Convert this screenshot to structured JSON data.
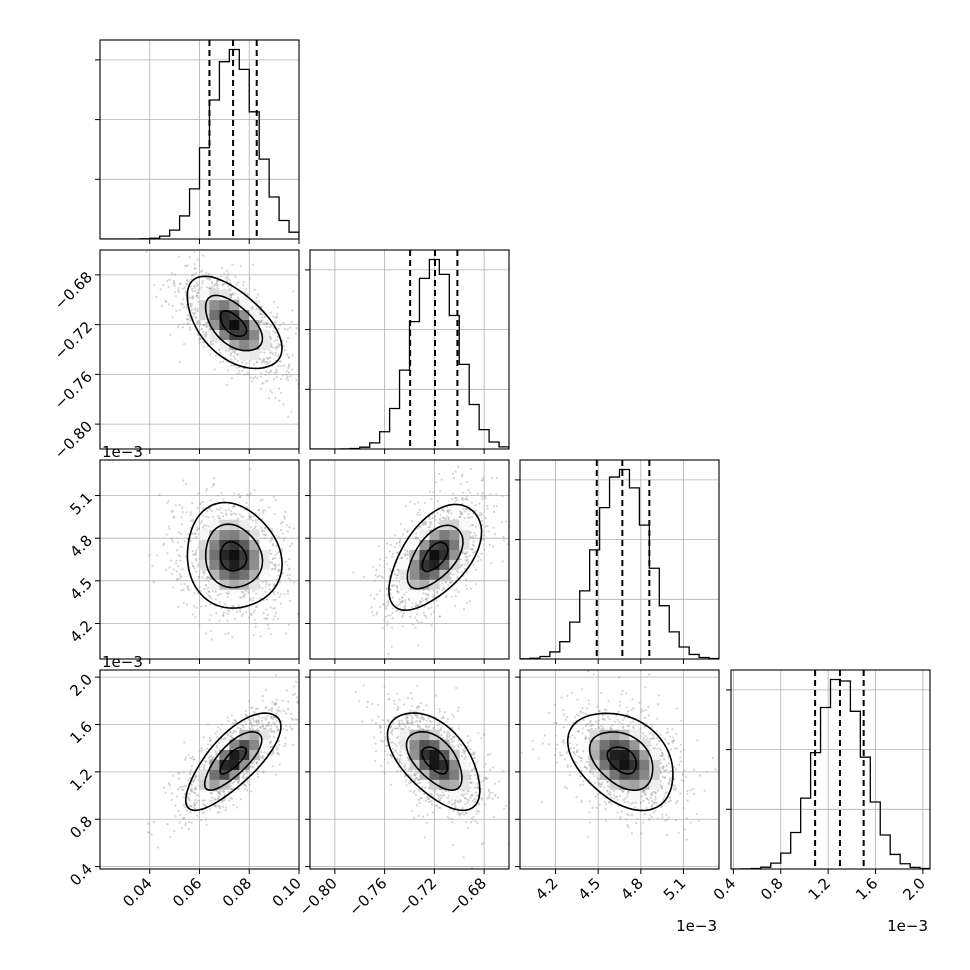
{
  "chart_data": {
    "type": "corner",
    "title": "",
    "parameters": [
      {
        "ticks": [
          0.04,
          0.06,
          0.08,
          0.1
        ],
        "tick_labels": [
          "0.04",
          "0.06",
          "0.08",
          "0.10"
        ],
        "range": [
          0.02,
          0.1
        ],
        "offset_label": "",
        "quantiles": [
          0.064,
          0.0735,
          0.083
        ],
        "mean": 0.0735,
        "sd": 0.0095
      },
      {
        "ticks": [
          -0.8,
          -0.76,
          -0.72,
          -0.68
        ],
        "tick_labels": [
          "−0.80",
          "−0.76",
          "−0.72",
          "−0.68"
        ],
        "range": [
          -0.82,
          -0.66
        ],
        "offset_label": "",
        "quantiles": [
          -0.7395,
          -0.7195,
          -0.7015
        ],
        "mean": -0.7195,
        "sd": 0.0185
      },
      {
        "ticks": [
          4.2,
          4.5,
          4.8,
          5.1
        ],
        "tick_labels": [
          "4.2",
          "4.5",
          "4.8",
          "5.1"
        ],
        "range": [
          3.95,
          5.35
        ],
        "offset_label": "1e−3",
        "quantiles": [
          4.49,
          4.67,
          4.86
        ],
        "mean": 4.67,
        "sd": 0.185
      },
      {
        "ticks": [
          0.4,
          0.8,
          1.2,
          1.6,
          2.0
        ],
        "tick_labels": [
          "0.4",
          "0.8",
          "1.2",
          "1.6",
          "2.0"
        ],
        "range": [
          0.38,
          2.06
        ],
        "offset_label": "1e−3",
        "quantiles": [
          1.09,
          1.3,
          1.5
        ],
        "mean": 1.3,
        "sd": 0.205
      }
    ],
    "correlations": [
      [
        1.0,
        -0.55,
        -0.1,
        0.75
      ],
      [
        -0.55,
        1.0,
        0.55,
        -0.55
      ],
      [
        -0.1,
        0.55,
        1.0,
        -0.35
      ],
      [
        0.75,
        -0.55,
        -0.35,
        1.0
      ]
    ],
    "histogram_bins": 20,
    "grid": true,
    "quantile_line_style": "dashed",
    "contour_levels": 3,
    "colors": {
      "histogram": "#000000",
      "points": "#a0a0a0",
      "grid": "#b0b0b0",
      "frame": "#000000"
    }
  }
}
